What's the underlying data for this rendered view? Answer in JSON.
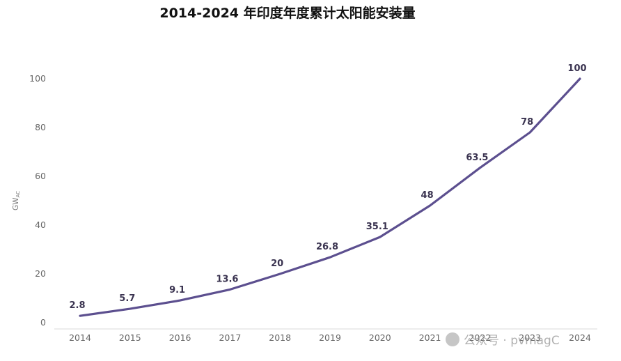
{
  "title": "2014-2024 年印度年度累计太阳能安装量",
  "watermark": "公众号 · pvmagC",
  "chart_data": {
    "type": "line",
    "title": "2014-2024 年印度年度累计太阳能安装量",
    "xlabel": "",
    "ylabel": "GWAC",
    "categories": [
      "2014",
      "2015",
      "2016",
      "2017",
      "2018",
      "2019",
      "2020",
      "2021",
      "2022",
      "2023",
      "2024"
    ],
    "values": [
      2.8,
      5.7,
      9.1,
      13.6,
      20,
      26.8,
      35.1,
      48,
      63.5,
      78,
      100
    ],
    "data_labels": [
      "2.8",
      "5.7",
      "9.1",
      "13.6",
      "20",
      "26.8",
      "35.1",
      "48",
      "63.5",
      "78",
      "100"
    ],
    "yticks": [
      "0",
      "20",
      "40",
      "60",
      "80",
      "100"
    ],
    "ylim": [
      0,
      100
    ],
    "grid": false,
    "line_color": "#5c4f8f"
  }
}
